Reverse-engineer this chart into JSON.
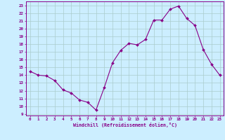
{
  "x": [
    0,
    1,
    2,
    3,
    4,
    5,
    6,
    7,
    8,
    9,
    10,
    11,
    12,
    13,
    14,
    15,
    16,
    17,
    18,
    19,
    20,
    21,
    22,
    23
  ],
  "y": [
    14.5,
    14.0,
    13.9,
    13.3,
    12.1,
    11.7,
    10.8,
    10.5,
    9.5,
    12.4,
    15.6,
    17.2,
    18.1,
    17.9,
    18.6,
    21.1,
    21.1,
    22.5,
    22.9,
    21.3,
    20.4,
    17.3,
    15.4,
    14.0
  ],
  "line_color": "#880088",
  "marker": "D",
  "marker_size": 2.0,
  "bg_color": "#cceeff",
  "grid_color": "#aacccc",
  "xlabel": "Windchill (Refroidissement éolien,°C)",
  "ylabel_ticks": [
    9,
    10,
    11,
    12,
    13,
    14,
    15,
    16,
    17,
    18,
    19,
    20,
    21,
    22,
    23
  ],
  "xlim": [
    -0.5,
    23.5
  ],
  "ylim": [
    8.8,
    23.5
  ]
}
